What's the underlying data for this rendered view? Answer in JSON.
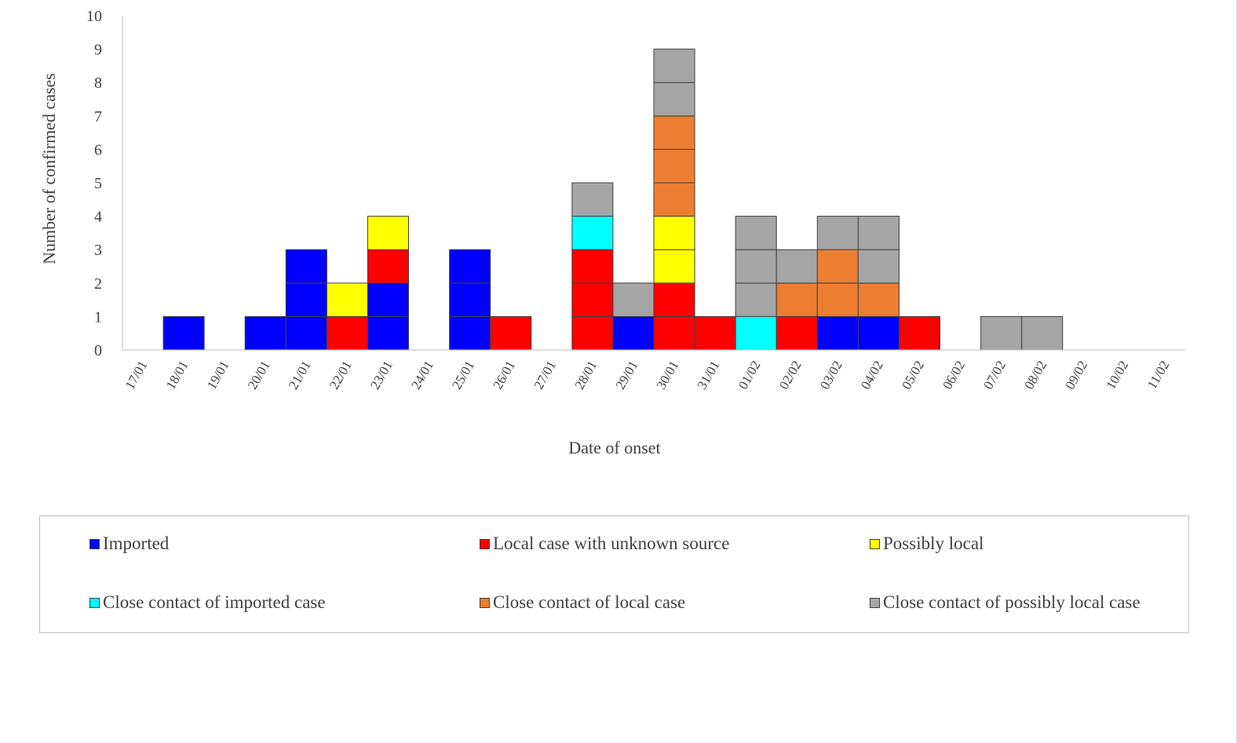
{
  "chart_data": {
    "type": "bar",
    "stacked": true,
    "title": "",
    "xlabel": "Date of onset",
    "ylabel": "Number of confirmed cases",
    "ylim": [
      0,
      10
    ],
    "yticks": [
      0,
      1,
      2,
      3,
      4,
      5,
      6,
      7,
      8,
      9,
      10
    ],
    "grid": false,
    "legend_position": "bottom",
    "categories": [
      "17/01",
      "18/01",
      "19/01",
      "20/01",
      "21/01",
      "22/01",
      "23/01",
      "24/01",
      "25/01",
      "26/01",
      "27/01",
      "28/01",
      "29/01",
      "30/01",
      "31/01",
      "01/02",
      "02/02",
      "03/02",
      "04/02",
      "05/02",
      "06/02",
      "07/02",
      "08/02",
      "09/02",
      "10/02",
      "11/02"
    ],
    "series": [
      {
        "name": "Imported",
        "color": "#0000ff",
        "values": [
          0,
          1,
          0,
          1,
          3,
          0,
          2,
          0,
          3,
          0,
          0,
          0,
          1,
          0,
          0,
          0,
          0,
          1,
          1,
          0,
          0,
          0,
          0,
          0,
          0,
          0
        ]
      },
      {
        "name": "Local case with unknown source",
        "color": "#ff0000",
        "values": [
          0,
          0,
          0,
          0,
          0,
          1,
          1,
          0,
          0,
          1,
          0,
          3,
          0,
          2,
          1,
          0,
          1,
          0,
          0,
          1,
          0,
          0,
          0,
          0,
          0,
          0
        ]
      },
      {
        "name": "Possibly local",
        "color": "#ffff00",
        "values": [
          0,
          0,
          0,
          0,
          0,
          1,
          1,
          0,
          0,
          0,
          0,
          0,
          0,
          2,
          0,
          0,
          0,
          0,
          0,
          0,
          0,
          0,
          0,
          0,
          0,
          0
        ]
      },
      {
        "name": "Close contact of imported case",
        "color": "#00ffff",
        "values": [
          0,
          0,
          0,
          0,
          0,
          0,
          0,
          0,
          0,
          0,
          0,
          1,
          0,
          0,
          0,
          1,
          0,
          0,
          0,
          0,
          0,
          0,
          0,
          0,
          0,
          0
        ]
      },
      {
        "name": "Close contact of local case",
        "color": "#ed7d31",
        "values": [
          0,
          0,
          0,
          0,
          0,
          0,
          0,
          0,
          0,
          0,
          0,
          0,
          0,
          3,
          0,
          0,
          1,
          2,
          1,
          0,
          0,
          0,
          0,
          0,
          0,
          0
        ]
      },
      {
        "name": "Close contact of possibly local case",
        "color": "#a5a5a5",
        "values": [
          0,
          0,
          0,
          0,
          0,
          0,
          0,
          0,
          0,
          0,
          0,
          1,
          1,
          2,
          0,
          3,
          1,
          1,
          2,
          0,
          0,
          1,
          1,
          0,
          0,
          0
        ]
      }
    ]
  }
}
